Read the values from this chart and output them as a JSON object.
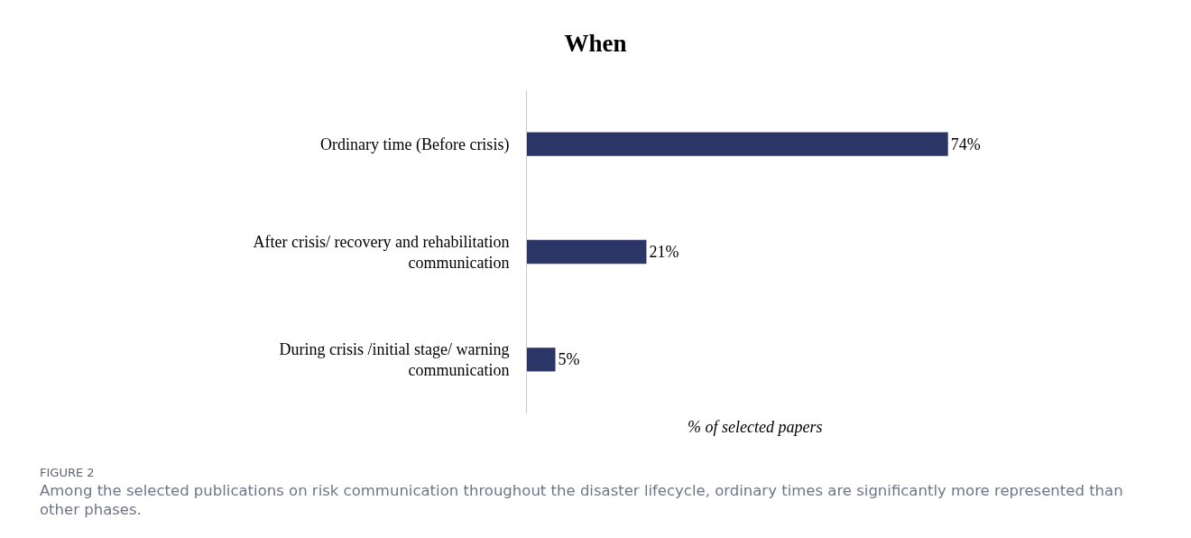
{
  "chart_data": {
    "type": "bar",
    "orientation": "horizontal",
    "title": "When",
    "xlabel": "% of selected papers",
    "categories": [
      "Ordinary time (Before crisis)",
      "After crisis/ recovery and rehabilitation\ncommunication",
      "During crisis /initial stage/ warning\ncommunication"
    ],
    "values": [
      74,
      21,
      5
    ],
    "value_labels": [
      "74%",
      "21%",
      "5%"
    ],
    "color": "#2b3566",
    "tick_labels": "y",
    "annotations": [
      "FIGURE 2",
      "Among the selected publications on risk communication throughout the disaster lifecycle, ordinary times are significantly more represented than other phases."
    ]
  }
}
